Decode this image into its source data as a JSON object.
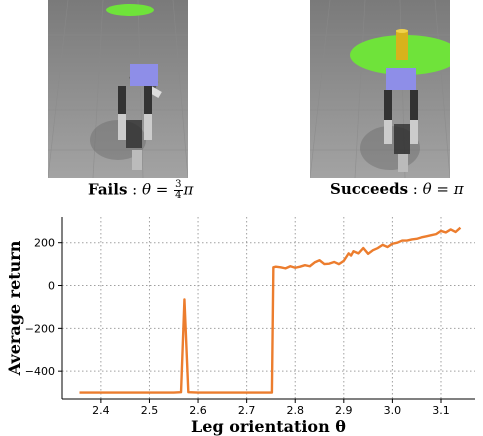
{
  "left_caption": {
    "status": "Fails",
    "symbol": "θ",
    "numerator": "3",
    "denominator": "4",
    "pi": "π"
  },
  "right_caption": {
    "status": "Succeeds",
    "symbol": "θ",
    "value": "π"
  },
  "colors": {
    "line": "#ec7d2e",
    "grid": "#a0a0a0",
    "floor": "#8f8f8f",
    "target": "#6fe33a"
  },
  "chart_data": {
    "type": "line",
    "xlabel": "Leg orientation θ",
    "ylabel": "Average return",
    "xlim": [
      2.32,
      3.17
    ],
    "ylim": [
      -530,
      320
    ],
    "xticks": [
      2.4,
      2.5,
      2.6,
      2.7,
      2.8,
      2.9,
      3.0,
      3.1
    ],
    "xtick_labels": [
      "2.4",
      "2.5",
      "2.6",
      "2.7",
      "2.8",
      "2.9",
      "3.0",
      "3.1"
    ],
    "yticks": [
      -400,
      -200,
      0,
      200
    ],
    "ytick_labels": [
      "−400",
      "−200",
      "0",
      "200"
    ],
    "grid": true,
    "series": [
      {
        "x": [
          2.356,
          2.4,
          2.45,
          2.5,
          2.55,
          2.565,
          2.572,
          2.58,
          2.6,
          2.65,
          2.7,
          2.752,
          2.755,
          2.76,
          2.77,
          2.78,
          2.79,
          2.8,
          2.81,
          2.82,
          2.83,
          2.84,
          2.85,
          2.86,
          2.87,
          2.88,
          2.89,
          2.9,
          2.91,
          2.915,
          2.92,
          2.93,
          2.94,
          2.95,
          2.96,
          2.97,
          2.98,
          2.99,
          3.0,
          3.01,
          3.02,
          3.03,
          3.04,
          3.05,
          3.06,
          3.07,
          3.08,
          3.09,
          3.1,
          3.11,
          3.12,
          3.13,
          3.14
        ],
        "y": [
          -500,
          -500,
          -500,
          -500,
          -500,
          -498,
          -65,
          -498,
          -500,
          -500,
          -500,
          -500,
          85,
          88,
          85,
          80,
          90,
          83,
          88,
          95,
          90,
          108,
          118,
          100,
          102,
          110,
          100,
          115,
          150,
          140,
          160,
          150,
          175,
          148,
          165,
          175,
          190,
          180,
          195,
          200,
          210,
          210,
          215,
          218,
          225,
          230,
          235,
          240,
          255,
          248,
          262,
          250,
          270
        ]
      }
    ]
  }
}
